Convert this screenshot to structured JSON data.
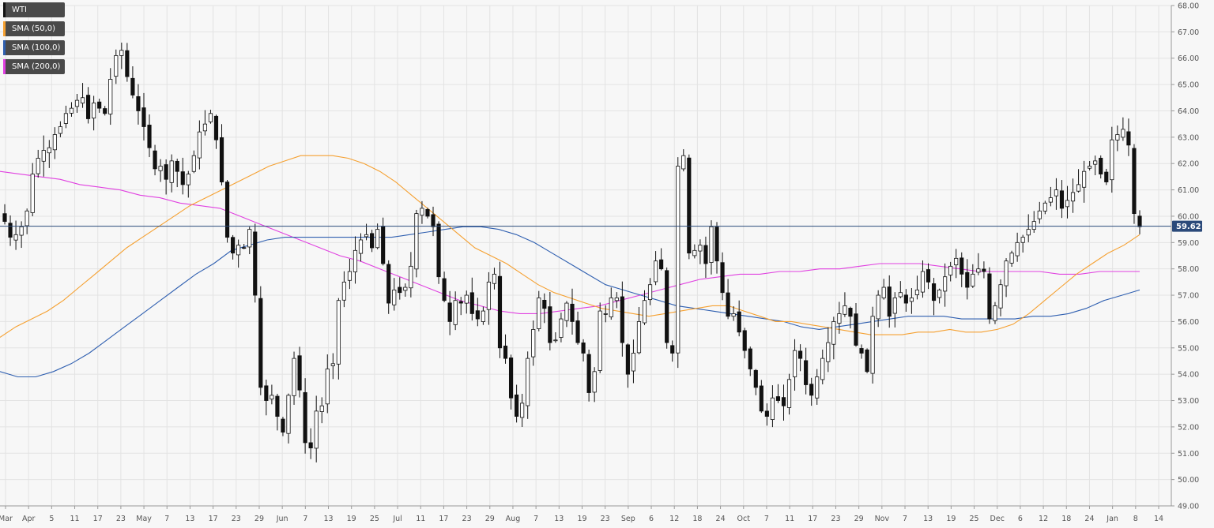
{
  "chart_data": {
    "type": "candlestick",
    "ylim": [
      49.0,
      68.0
    ],
    "yticks": [
      "49.00",
      "50.00",
      "51.00",
      "52.00",
      "53.00",
      "54.00",
      "55.00",
      "56.00",
      "57.00",
      "58.00",
      "59.00",
      "60.00",
      "61.00",
      "62.00",
      "63.00",
      "64.00",
      "65.00",
      "66.00",
      "67.00",
      "68.00"
    ],
    "xticks": [
      "Mar",
      "Apr",
      "5",
      "11",
      "17",
      "23",
      "May",
      "7",
      "13",
      "17",
      "23",
      "29",
      "Jun",
      "7",
      "13",
      "19",
      "25",
      "Jul",
      "11",
      "17",
      "23",
      "29",
      "Aug",
      "7",
      "13",
      "19",
      "23",
      "Sep",
      "6",
      "12",
      "18",
      "24",
      "Oct",
      "7",
      "11",
      "17",
      "23",
      "29",
      "Nov",
      "7",
      "13",
      "19",
      "25",
      "Dec",
      "6",
      "12",
      "18",
      "24",
      "Jan",
      "8",
      "14"
    ],
    "last_price_label": "59.62",
    "last_price": 59.62,
    "legend": [
      {
        "label": "WTI",
        "color": "#111111"
      },
      {
        "label": "SMA (50,0)",
        "color": "#f5a030"
      },
      {
        "label": "SMA (100,0)",
        "color": "#2f5fb0"
      },
      {
        "label": "SMA (200,0)",
        "color": "#e040e0"
      }
    ],
    "colors": {
      "up": "#ffffff",
      "down": "#111111",
      "wick": "#111111",
      "grid": "#e3e3e3",
      "price_line": "#2b4a7a",
      "price_tag": "#2b4a7a",
      "background": "#f7f7f7"
    },
    "series_wti_close": [
      59.8,
      59.2,
      59.3,
      59.6,
      60.2,
      61.6,
      62.2,
      62.5,
      62.6,
      63.1,
      63.4,
      63.9,
      64.1,
      64.4,
      64.5,
      63.7,
      64.3,
      64.1,
      63.9,
      65.2,
      66.1,
      66.3,
      65.3,
      64.6,
      64.0,
      63.4,
      62.6,
      61.8,
      61.9,
      61.4,
      62.1,
      61.7,
      61.2,
      61.6,
      62.3,
      63.2,
      63.5,
      63.9,
      62.9,
      61.3,
      59.2,
      58.6,
      58.9,
      58.8,
      59.5,
      57.0,
      53.5,
      53.0,
      53.2,
      52.4,
      51.8,
      53.2,
      54.6,
      53.4,
      51.4,
      51.2,
      52.6,
      52.8,
      54.2,
      54.4,
      56.8,
      57.5,
      57.9,
      58.7,
      59.1,
      59.3,
      58.8,
      59.5,
      58.2,
      56.7,
      57.2,
      57.1,
      57.3,
      58.1,
      60.1,
      60.3,
      60.0,
      59.6,
      57.7,
      56.8,
      56.0,
      56.8,
      56.7,
      57.0,
      56.3,
      56.1,
      56.4,
      57.5,
      57.8,
      55.0,
      54.6,
      53.1,
      52.4,
      52.9,
      54.6,
      55.7,
      56.9,
      56.5,
      55.2,
      55.3,
      56.1,
      56.7,
      56.0,
      55.2,
      54.8,
      53.3,
      54.1,
      56.4,
      56.3,
      56.9,
      56.9,
      55.2,
      54.0,
      54.8,
      56.0,
      56.8,
      57.4,
      58.3,
      58.0,
      55.2,
      54.8,
      61.9,
      62.3,
      58.6,
      58.7,
      58.9,
      58.2,
      59.6,
      58.3,
      57.1,
      56.2,
      56.3,
      55.6,
      54.9,
      54.2,
      53.5,
      52.6,
      52.4,
      53.1,
      53.0,
      52.8,
      53.8,
      54.9,
      54.6,
      53.6,
      53.2,
      53.9,
      54.6,
      55.2,
      56.0,
      56.3,
      56.6,
      56.2,
      55.1,
      54.8,
      54.1,
      56.2,
      57.0,
      57.3,
      56.2,
      56.9,
      57.1,
      56.7,
      56.9,
      57.2,
      57.9,
      57.5,
      56.8,
      57.2,
      57.7,
      58.1,
      58.4,
      57.8,
      57.3,
      57.8,
      58.0,
      57.9,
      56.1,
      56.6,
      57.4,
      58.3,
      58.6,
      59.0,
      59.2,
      59.5,
      59.8,
      60.2,
      60.5,
      60.7,
      61.0,
      60.3,
      60.6,
      60.9,
      61.2,
      61.7,
      61.9,
      62.1,
      61.6,
      61.3,
      62.9,
      63.1,
      63.3,
      62.7,
      60.1,
      59.6
    ]
  },
  "sma_50": [
    55.4,
    55.8,
    56.1,
    56.4,
    56.8,
    57.3,
    57.8,
    58.3,
    58.8,
    59.2,
    59.6,
    60.0,
    60.4,
    60.7,
    61.0,
    61.3,
    61.6,
    61.9,
    62.1,
    62.3,
    62.3,
    62.3,
    62.2,
    62.0,
    61.7,
    61.3,
    60.8,
    60.3,
    59.8,
    59.3,
    58.8,
    58.5,
    58.2,
    57.8,
    57.4,
    57.1,
    56.9,
    56.7,
    56.5,
    56.4,
    56.3,
    56.2,
    56.3,
    56.4,
    56.5,
    56.6,
    56.6,
    56.4,
    56.2,
    56.0,
    56.0,
    55.9,
    55.8,
    55.7,
    55.6,
    55.5,
    55.5,
    55.5,
    55.6,
    55.6,
    55.7,
    55.6,
    55.6,
    55.7,
    55.9,
    56.3,
    56.8,
    57.3,
    57.8,
    58.2,
    58.6,
    58.9,
    59.3
  ],
  "sma_100": [
    54.1,
    53.9,
    53.9,
    54.1,
    54.4,
    54.8,
    55.3,
    55.8,
    56.3,
    56.8,
    57.3,
    57.8,
    58.2,
    58.7,
    58.9,
    59.1,
    59.2,
    59.2,
    59.2,
    59.2,
    59.2,
    59.2,
    59.2,
    59.3,
    59.4,
    59.5,
    59.6,
    59.6,
    59.5,
    59.3,
    59.0,
    58.6,
    58.2,
    57.8,
    57.4,
    57.2,
    57.0,
    56.8,
    56.6,
    56.5,
    56.4,
    56.3,
    56.2,
    56.1,
    56.0,
    55.8,
    55.7,
    55.8,
    55.9,
    56.0,
    56.1,
    56.2,
    56.2,
    56.2,
    56.1,
    56.1,
    56.1,
    56.1,
    56.2,
    56.2,
    56.3,
    56.5,
    56.8,
    57.0,
    57.2
  ],
  "sma_200": [
    61.7,
    61.6,
    61.5,
    61.4,
    61.2,
    61.1,
    61.0,
    60.8,
    60.7,
    60.5,
    60.4,
    60.3,
    60.0,
    59.7,
    59.4,
    59.1,
    58.8,
    58.5,
    58.3,
    58.0,
    57.7,
    57.4,
    57.1,
    56.8,
    56.6,
    56.4,
    56.3,
    56.3,
    56.4,
    56.5,
    56.6,
    56.8,
    57.0,
    57.2,
    57.4,
    57.6,
    57.7,
    57.8,
    57.8,
    57.9,
    57.9,
    58.0,
    58.0,
    58.1,
    58.2,
    58.2,
    58.2,
    58.1,
    58.0,
    57.9,
    57.9,
    57.9,
    57.9,
    57.8,
    57.8,
    57.9,
    57.9,
    57.9
  ]
}
